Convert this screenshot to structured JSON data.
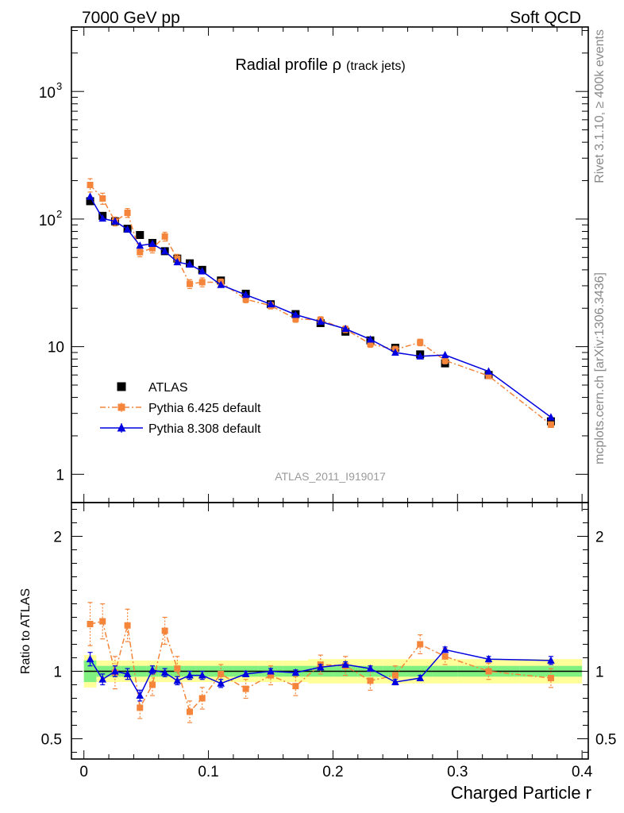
{
  "header": {
    "left": "7000 GeV pp",
    "right": "Soft QCD"
  },
  "side_text": {
    "rivet": "Rivet 3.1.10, ≥ 400k events",
    "mcplots": "mcplots.cern.ch [arXiv:1306.3436]"
  },
  "watermark": "ATLAS_2011_I919017",
  "chart_data": [
    {
      "type": "scatter",
      "panel": "main",
      "title": "Radial profile ρ",
      "subtitle": "(track jets)",
      "xlabel": "Charged Particle r",
      "ylabel": "",
      "log_y": true,
      "xlim": [
        -0.01,
        0.405
      ],
      "ylim": [
        0.6,
        3200
      ],
      "y_ticks": [
        {
          "value": 1,
          "label": "1"
        },
        {
          "value": 10,
          "label": "10"
        },
        {
          "value": 100,
          "label": "10",
          "exp": "2"
        },
        {
          "value": 1000,
          "label": "10",
          "exp": "3"
        }
      ],
      "legend_position": "lower-left",
      "series": [
        {
          "name": "ATLAS",
          "color": "#000000",
          "marker": "square",
          "line": "none",
          "x": [
            0.005,
            0.015,
            0.025,
            0.035,
            0.045,
            0.055,
            0.065,
            0.075,
            0.085,
            0.095,
            0.11,
            0.13,
            0.15,
            0.17,
            0.19,
            0.21,
            0.23,
            0.25,
            0.27,
            0.29,
            0.325,
            0.375
          ],
          "y": [
            138,
            106,
            96,
            84,
            75,
            65,
            56,
            49,
            45,
            40,
            33,
            26,
            21.5,
            18,
            15.3,
            13.1,
            11.2,
            9.8,
            8.7,
            7.4,
            6.0,
            2.6
          ]
        },
        {
          "name": "Pythia 6.425 default",
          "color": "#f4853a",
          "marker": "square",
          "line": "dashdot",
          "x": [
            0.005,
            0.015,
            0.025,
            0.035,
            0.045,
            0.055,
            0.065,
            0.075,
            0.085,
            0.095,
            0.11,
            0.13,
            0.15,
            0.17,
            0.19,
            0.21,
            0.23,
            0.25,
            0.27,
            0.29,
            0.325,
            0.375
          ],
          "y": [
            185,
            145,
            96,
            112,
            55,
            59,
            73,
            49,
            31,
            32,
            32,
            23.5,
            21,
            16.5,
            16.2,
            13.7,
            10.5,
            9.5,
            10.8,
            7.8,
            5.9,
            2.45
          ],
          "err": [
            0.12,
            0.1,
            0.08,
            0.08,
            0.08,
            0.08,
            0.08,
            0.08,
            0.08,
            0.08,
            0.06,
            0.06,
            0.06,
            0.06,
            0.06,
            0.06,
            0.06,
            0.06,
            0.06,
            0.06,
            0.05,
            0.05
          ]
        },
        {
          "name": "Pythia 8.308 default",
          "color": "#0000e0",
          "marker": "triangle",
          "line": "solid",
          "x": [
            0.005,
            0.015,
            0.025,
            0.035,
            0.045,
            0.055,
            0.065,
            0.075,
            0.085,
            0.095,
            0.11,
            0.13,
            0.15,
            0.17,
            0.19,
            0.21,
            0.23,
            0.25,
            0.27,
            0.29,
            0.325,
            0.375
          ],
          "y": [
            150,
            101,
            96,
            83,
            62,
            64,
            56,
            46,
            44,
            39,
            30.5,
            25.5,
            21.5,
            17.8,
            15.7,
            13.8,
            11.4,
            9.0,
            8.4,
            8.6,
            6.4,
            2.8
          ]
        }
      ]
    },
    {
      "type": "scatter",
      "panel": "ratio",
      "xlabel": "Charged Particle r",
      "ylabel": "Ratio to ATLAS",
      "xlim": [
        -0.01,
        0.405
      ],
      "ylim": [
        0.35,
        2.25
      ],
      "x_ticks": [
        0,
        0.1,
        0.2,
        0.3,
        0.4
      ],
      "x_tick_labels": [
        "0",
        "0.1",
        "0.2",
        "0.3",
        "0.4"
      ],
      "y_ticks": [
        0.5,
        1,
        2
      ],
      "y_tick_labels": [
        "0.5",
        "1",
        "2"
      ],
      "bands": {
        "yellow_color": "#ffff99",
        "green_color": "#80f080",
        "bins": [
          [
            0.0,
            0.01
          ],
          [
            0.01,
            0.02
          ],
          [
            0.02,
            0.03
          ],
          [
            0.03,
            0.04
          ],
          [
            0.04,
            0.05
          ],
          [
            0.05,
            0.06
          ],
          [
            0.06,
            0.07
          ],
          [
            0.07,
            0.08
          ],
          [
            0.08,
            0.09
          ],
          [
            0.09,
            0.1
          ],
          [
            0.1,
            0.12
          ],
          [
            0.12,
            0.14
          ],
          [
            0.14,
            0.16
          ],
          [
            0.16,
            0.18
          ],
          [
            0.18,
            0.2
          ],
          [
            0.2,
            0.22
          ],
          [
            0.22,
            0.24
          ],
          [
            0.24,
            0.26
          ],
          [
            0.26,
            0.28
          ],
          [
            0.28,
            0.3
          ],
          [
            0.3,
            0.35
          ],
          [
            0.35,
            0.4
          ]
        ],
        "yellow_half": [
          0.12,
          0.08,
          0.08,
          0.08,
          0.08,
          0.08,
          0.08,
          0.08,
          0.08,
          0.08,
          0.08,
          0.08,
          0.08,
          0.08,
          0.09,
          0.09,
          0.09,
          0.09,
          0.09,
          0.09,
          0.09,
          0.09
        ],
        "green_half": [
          0.08,
          0.04,
          0.04,
          0.04,
          0.04,
          0.04,
          0.04,
          0.04,
          0.04,
          0.04,
          0.04,
          0.04,
          0.04,
          0.04,
          0.04,
          0.04,
          0.04,
          0.04,
          0.04,
          0.04,
          0.04,
          0.04
        ]
      },
      "series": [
        {
          "name": "Pythia 6.425 default",
          "color": "#f4853a",
          "marker": "square",
          "line": "dashdot",
          "x": [
            0.005,
            0.015,
            0.025,
            0.035,
            0.045,
            0.055,
            0.065,
            0.075,
            0.085,
            0.095,
            0.11,
            0.13,
            0.15,
            0.17,
            0.19,
            0.21,
            0.23,
            0.25,
            0.27,
            0.29,
            0.325,
            0.375
          ],
          "y": [
            1.35,
            1.37,
            0.99,
            1.34,
            0.73,
            0.9,
            1.3,
            1.02,
            0.7,
            0.8,
            0.98,
            0.87,
            0.97,
            0.89,
            1.05,
            1.04,
            0.93,
            0.97,
            1.2,
            1.11,
            1.0,
            0.95
          ],
          "err": [
            0.16,
            0.13,
            0.12,
            0.12,
            0.08,
            0.08,
            0.1,
            0.09,
            0.08,
            0.08,
            0.07,
            0.07,
            0.07,
            0.07,
            0.07,
            0.07,
            0.07,
            0.07,
            0.07,
            0.06,
            0.06,
            0.07
          ]
        },
        {
          "name": "Pythia 8.308 default",
          "color": "#0000e0",
          "marker": "triangle",
          "line": "solid",
          "x": [
            0.005,
            0.015,
            0.025,
            0.035,
            0.045,
            0.055,
            0.065,
            0.075,
            0.085,
            0.095,
            0.11,
            0.13,
            0.15,
            0.17,
            0.19,
            0.21,
            0.23,
            0.25,
            0.27,
            0.29,
            0.325,
            0.375
          ],
          "y": [
            1.09,
            0.94,
            1.0,
            0.98,
            0.82,
            1.01,
            0.99,
            0.93,
            0.97,
            0.97,
            0.91,
            0.98,
            1.0,
            0.99,
            1.03,
            1.05,
            1.02,
            0.92,
            0.95,
            1.16,
            1.09,
            1.08
          ],
          "err": [
            0.05,
            0.04,
            0.04,
            0.04,
            0.04,
            0.03,
            0.03,
            0.03,
            0.03,
            0.03,
            0.03,
            0.02,
            0.02,
            0.02,
            0.02,
            0.02,
            0.02,
            0.02,
            0.02,
            0.02,
            0.02,
            0.03
          ]
        }
      ]
    }
  ]
}
